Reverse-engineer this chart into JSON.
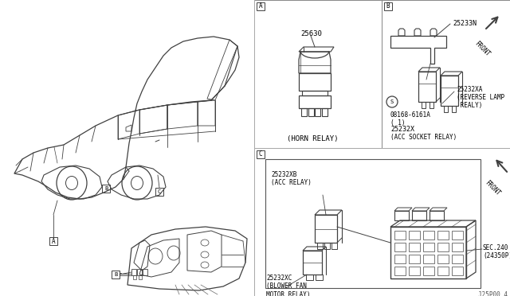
{
  "bg_color": "#ffffff",
  "lc": "#404040",
  "tc": "#000000",
  "fig_w": 6.4,
  "fig_h": 3.72,
  "dpi": 100,
  "footer": "J25P00 4",
  "A_part": "25630",
  "A_cap": "(HORN RELAY)",
  "B_bracket": "25233N",
  "B_screw": "08168-6161A\n( 1)",
  "B_part_main": "25232X",
  "B_cap_main": "(ACC SOCKET RELAY)",
  "B_part_sub": "25232XA",
  "B_cap_sub": "(REVERSE LAMP\n REALY)",
  "B_front": "FRONT",
  "C_part_acc": "25232XB\n(ACC RELAY)",
  "C_part_blower": "25232XC\n(BLOWER FAN\nMOTOR RELAY)",
  "C_ref": "SEC.240\n(24350P)",
  "C_front": "FRONT"
}
